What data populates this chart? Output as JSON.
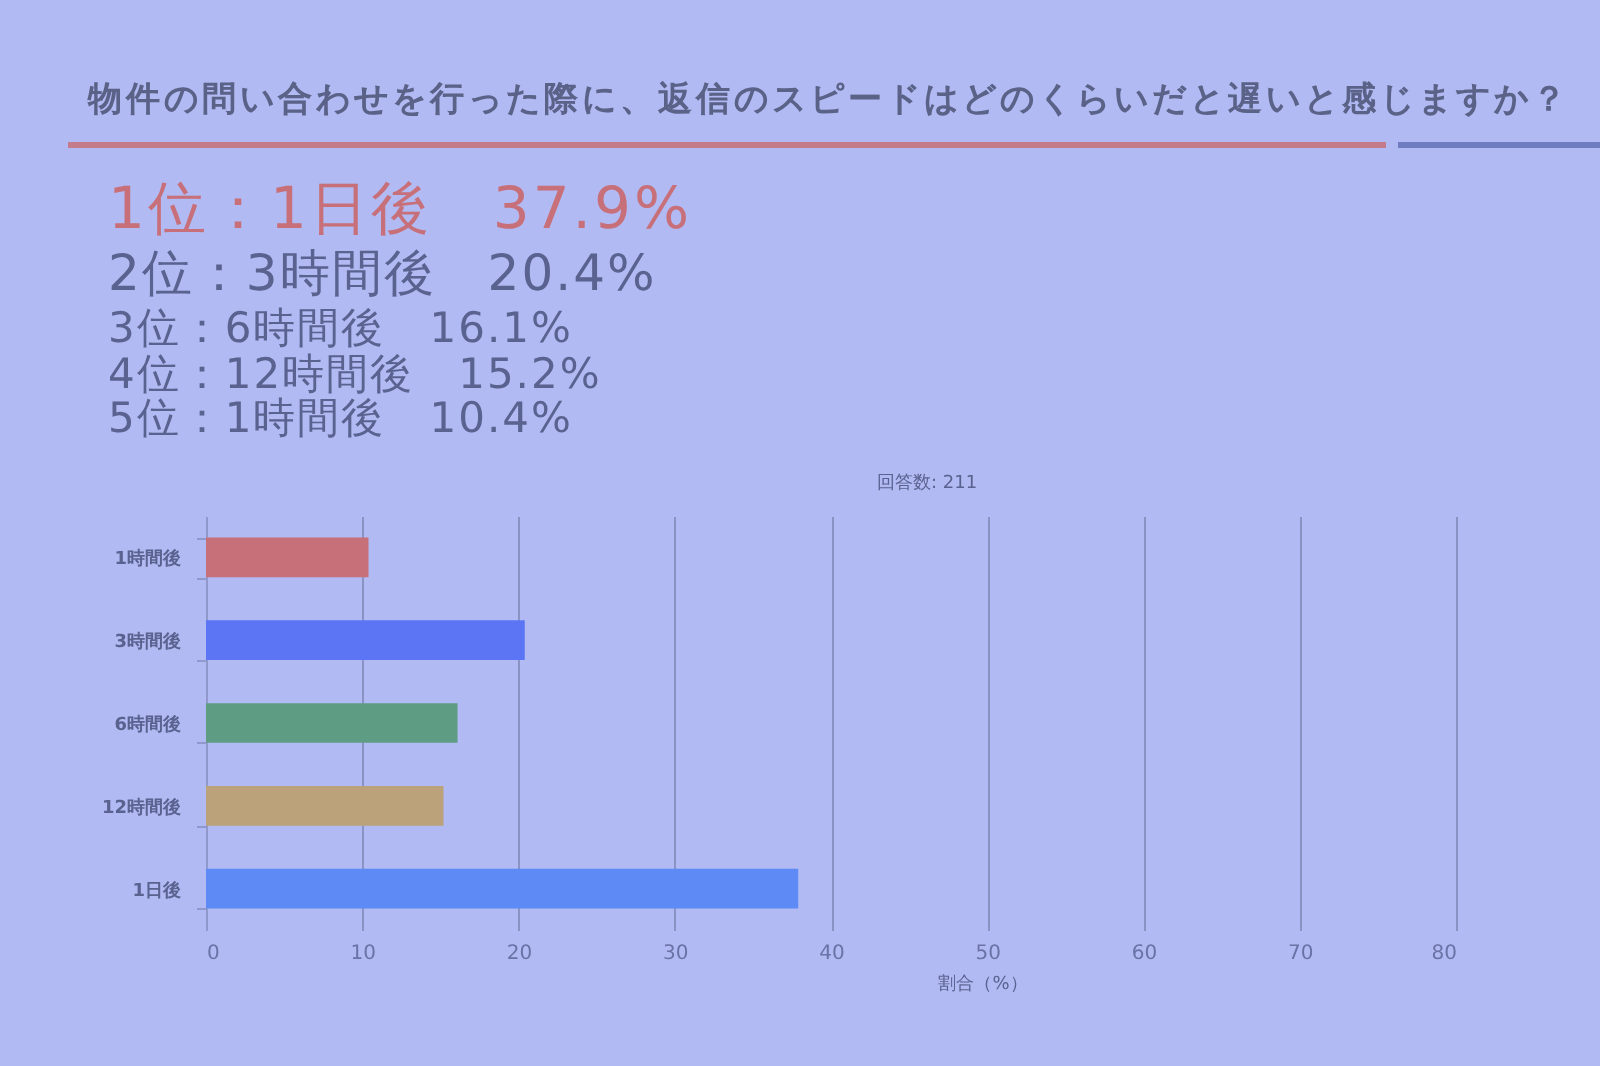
{
  "chart_data": {
    "type": "bar",
    "orientation": "horizontal",
    "title": "物件の問い合わせを行った際に、返信のスピードはどのくらいだと遅いと感じますか？",
    "subtitle": "回答数: 211",
    "xlabel": "割合（%）",
    "annotations": [
      "1位：1日後　37.9%",
      "2位：3時間後　20.4%",
      "3位：6時間後　16.1%",
      "4位：12時間後　15.2%",
      "5位：1時間後　10.4%"
    ],
    "categories": [
      "1時間後",
      "3時間後",
      "6時間後",
      "12時間後",
      "1日後"
    ],
    "values": [
      10.4,
      20.4,
      16.1,
      15.2,
      37.9
    ],
    "colors": [
      "#c8707a",
      "#5b75f5",
      "#5e9c84",
      "#bba27a",
      "#5d8af5"
    ],
    "xlim": [
      0,
      80
    ],
    "xticks": [
      0,
      10,
      20,
      30,
      40,
      50,
      60,
      70,
      80
    ],
    "grid": "x"
  }
}
